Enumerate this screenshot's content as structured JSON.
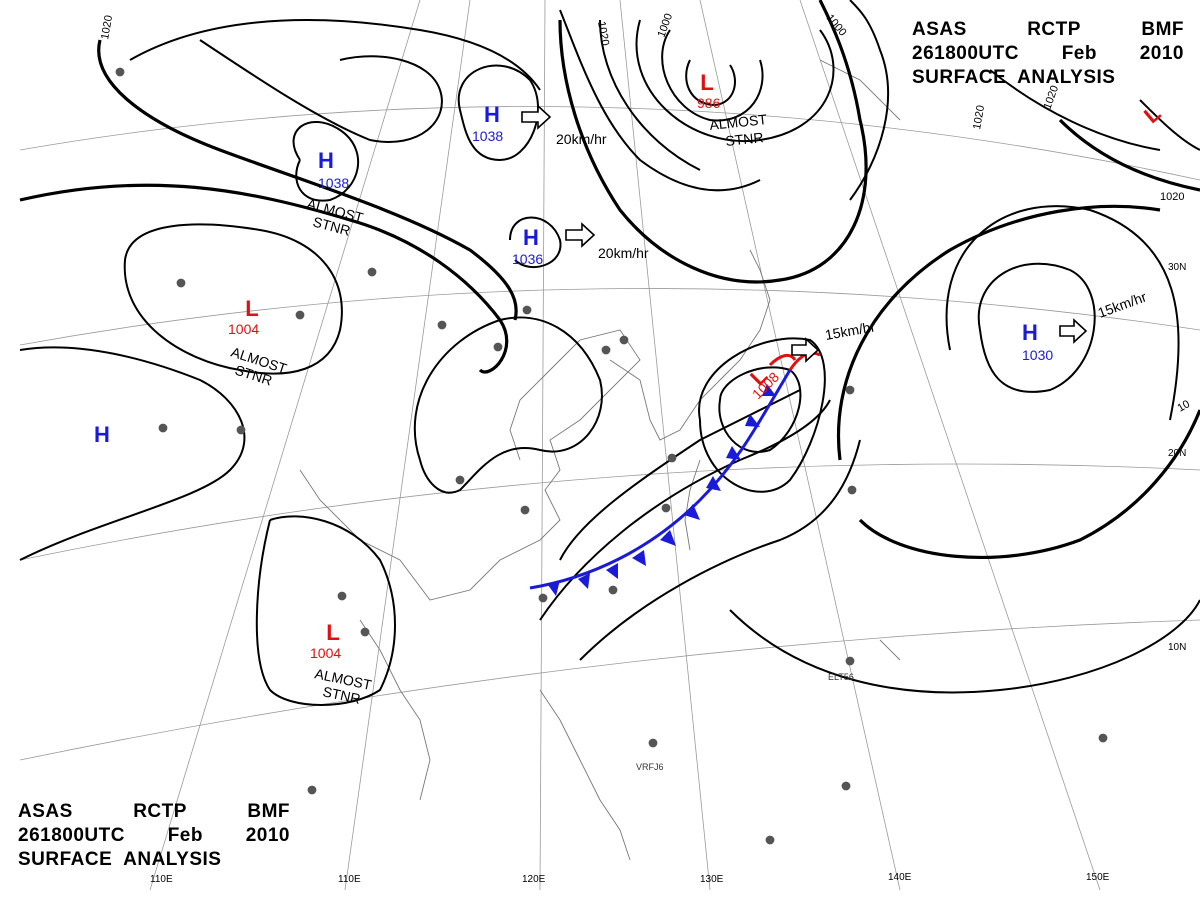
{
  "header": {
    "line1": [
      "ASAS",
      "RCTP",
      "BMF"
    ],
    "line2": [
      "261800UTC",
      "Feb",
      "2010"
    ],
    "line3": "SURFACE  ANALYSIS"
  },
  "pressure_centers": [
    {
      "kind": "H",
      "value": "1038",
      "color": "#1a1ad9"
    },
    {
      "kind": "H",
      "value": "1038",
      "color": "#1a1ad9"
    },
    {
      "kind": "H",
      "value": "1036",
      "color": "#1a1ad9"
    },
    {
      "kind": "H",
      "value": "1030",
      "color": "#1a1ad9"
    },
    {
      "kind": "H",
      "value": "",
      "color": "#1a1ad9"
    },
    {
      "kind": "L",
      "value": "986",
      "color": "#e01010"
    },
    {
      "kind": "L",
      "value": "1004",
      "color": "#e01010"
    },
    {
      "kind": "L",
      "value": "1004",
      "color": "#e01010"
    },
    {
      "kind": "L",
      "value": "1008",
      "color": "#e01010"
    },
    {
      "kind": "L",
      "value": "",
      "color": "#e01010"
    }
  ],
  "motion_labels": [
    "20km/hr",
    "20km/hr",
    "15km/hr",
    "15km/hr"
  ],
  "stationary_notes": [
    "ALMOST",
    "STNR"
  ],
  "isobar_labels": [
    "1020",
    "1020",
    "1000",
    "1000",
    "1020",
    "1020",
    "1020",
    "10"
  ],
  "grid_labels": {
    "longitudes": [
      "110E",
      "120E",
      "130E",
      "140E",
      "150E"
    ],
    "latitudes": [
      "30N",
      "20N",
      "10N"
    ]
  },
  "station_codes": [
    "ELT56",
    "VRFJ6"
  ],
  "colors": {
    "high": "#1a1ad9",
    "low": "#e01010",
    "front": "#1a1ad9",
    "isobar": "#000000"
  }
}
